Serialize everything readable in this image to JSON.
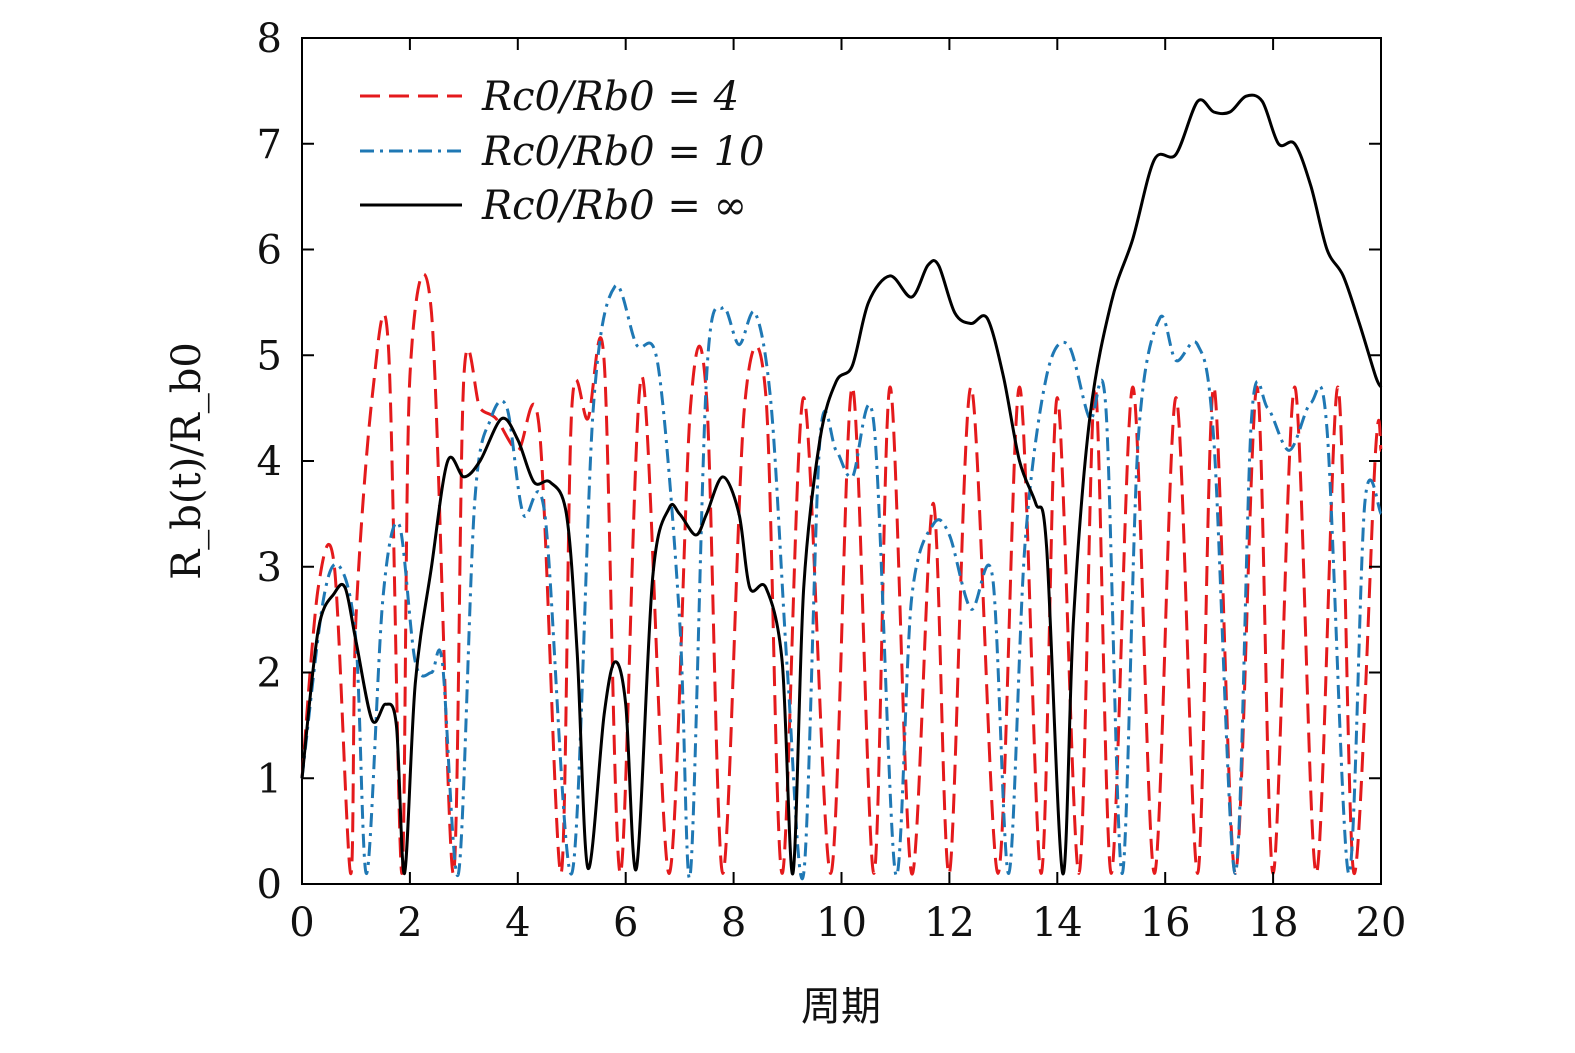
{
  "chart_data": {
    "type": "line",
    "xlabel": "周期",
    "ylabel": "R_b(t)/R_b0",
    "xlim": [
      0,
      20
    ],
    "ylim": [
      0,
      8
    ],
    "xticks": [
      0,
      2,
      4,
      6,
      8,
      10,
      12,
      14,
      16,
      18,
      20
    ],
    "yticks": [
      0,
      1,
      2,
      3,
      4,
      5,
      6,
      7,
      8
    ],
    "grid": false,
    "legend_position": "top-left",
    "series": [
      {
        "name": "R_c0/R_b0 = 4",
        "legend_label": "Rc0/Rb0 = 4",
        "color": "#e41a1c",
        "style": "dashed",
        "x": [
          0,
          0.3,
          0.6,
          0.9,
          1.0,
          1.3,
          1.6,
          1.85,
          2.0,
          2.4,
          2.8,
          3.0,
          3.3,
          3.6,
          4.0,
          4.4,
          4.8,
          5.0,
          5.3,
          5.6,
          5.9,
          6.3,
          6.8,
          7.2,
          7.5,
          7.8,
          8.2,
          8.6,
          8.9,
          9.3,
          9.8,
          10.2,
          10.6,
          10.9,
          11.3,
          11.7,
          12.0,
          12.4,
          12.9,
          13.3,
          13.7,
          14.0,
          14.4,
          14.7,
          15.0,
          15.4,
          15.8,
          16.2,
          16.6,
          16.9,
          17.3,
          17.7,
          18.0,
          18.4,
          18.8,
          19.2,
          19.5,
          19.9,
          20.0
        ],
        "y": [
          1.0,
          2.8,
          3.0,
          0.1,
          2.5,
          4.6,
          5.1,
          0.1,
          4.8,
          5.4,
          0.1,
          4.8,
          4.5,
          4.4,
          4.1,
          4.3,
          0.1,
          4.5,
          4.4,
          4.95,
          0.1,
          4.8,
          0.1,
          4.5,
          4.6,
          0.1,
          4.5,
          4.6,
          0.1,
          4.6,
          0.1,
          4.7,
          0.1,
          4.7,
          0.1,
          3.6,
          0.1,
          4.7,
          0.1,
          4.7,
          0.1,
          4.6,
          0.1,
          4.7,
          0.1,
          4.7,
          0.1,
          4.6,
          0.1,
          4.7,
          0.1,
          4.7,
          0.1,
          4.7,
          0.1,
          4.7,
          0.1,
          4.1,
          4.1
        ]
      },
      {
        "name": "R_c0/R_b0 = 10",
        "legend_label": "Rc0/Rb0 = 10",
        "color": "#1f78b4",
        "style": "dashdot",
        "x": [
          0,
          0.4,
          0.7,
          1.0,
          1.2,
          1.5,
          1.8,
          2.1,
          2.4,
          2.6,
          2.9,
          3.2,
          3.5,
          3.8,
          4.1,
          4.5,
          5.0,
          5.4,
          5.8,
          6.2,
          6.6,
          7.0,
          7.2,
          7.5,
          7.8,
          8.1,
          8.4,
          8.7,
          9.0,
          9.3,
          9.6,
          9.9,
          10.2,
          10.6,
          11.0,
          11.3,
          11.7,
          12.0,
          12.4,
          12.8,
          13.1,
          13.4,
          13.8,
          14.2,
          14.6,
          14.9,
          15.2,
          15.5,
          15.9,
          16.2,
          16.6,
          16.9,
          17.3,
          17.6,
          17.9,
          18.3,
          18.7,
          19.0,
          19.4,
          19.7,
          20.0
        ],
        "y": [
          1.0,
          2.7,
          3.0,
          2.3,
          0.1,
          2.7,
          3.4,
          2.1,
          2.0,
          2.1,
          0.1,
          3.6,
          4.4,
          4.5,
          3.5,
          3.5,
          0.1,
          4.5,
          5.65,
          5.1,
          4.9,
          2.5,
          0.1,
          4.8,
          5.45,
          5.1,
          5.4,
          4.5,
          2.0,
          0.1,
          4.2,
          4.1,
          3.85,
          4.35,
          0.1,
          2.7,
          3.4,
          3.3,
          2.6,
          2.9,
          0.1,
          3.2,
          4.8,
          5.1,
          4.4,
          4.5,
          0.1,
          4.2,
          5.35,
          4.95,
          5.1,
          4.2,
          0.1,
          4.4,
          4.5,
          4.1,
          4.55,
          4.3,
          0.1,
          3.6,
          3.5
        ]
      },
      {
        "name": "R_c0/R_b0 = ∞",
        "legend_label": "Rc0/Rb0 = ∞",
        "color": "#000000",
        "style": "solid",
        "x": [
          0,
          0.3,
          0.6,
          0.8,
          1.0,
          1.3,
          1.55,
          1.75,
          1.9,
          2.1,
          2.4,
          2.7,
          3.0,
          3.3,
          3.7,
          4.0,
          4.3,
          4.6,
          4.9,
          5.1,
          5.3,
          5.6,
          5.8,
          6.0,
          6.2,
          6.5,
          6.8,
          7.0,
          7.3,
          7.5,
          7.8,
          8.1,
          8.3,
          8.6,
          8.9,
          9.1,
          9.3,
          9.6,
          9.9,
          10.2,
          10.5,
          10.9,
          11.3,
          11.6,
          11.8,
          12.1,
          12.4,
          12.7,
          13.0,
          13.3,
          13.6,
          13.8,
          14.1,
          14.3,
          14.6,
          15.0,
          15.4,
          15.8,
          16.2,
          16.6,
          16.9,
          17.2,
          17.5,
          17.8,
          18.1,
          18.4,
          18.7,
          19.0,
          19.3,
          19.6,
          19.9,
          20.0
        ],
        "y": [
          1.0,
          2.4,
          2.75,
          2.8,
          2.3,
          1.55,
          1.7,
          1.5,
          0.1,
          1.9,
          3.0,
          4.0,
          3.85,
          4.0,
          4.4,
          4.2,
          3.8,
          3.8,
          3.5,
          2.2,
          0.15,
          1.6,
          2.1,
          1.7,
          0.15,
          2.9,
          3.55,
          3.5,
          3.3,
          3.5,
          3.85,
          3.5,
          2.8,
          2.8,
          2.1,
          0.1,
          2.8,
          4.2,
          4.75,
          4.9,
          5.5,
          5.75,
          5.55,
          5.85,
          5.85,
          5.4,
          5.3,
          5.35,
          4.8,
          4.0,
          3.6,
          3.2,
          0.1,
          2.5,
          4.4,
          5.5,
          6.1,
          6.85,
          6.9,
          7.4,
          7.3,
          7.3,
          7.45,
          7.4,
          7.0,
          7.0,
          6.6,
          6.0,
          5.75,
          5.3,
          4.8,
          4.7
        ]
      }
    ]
  }
}
